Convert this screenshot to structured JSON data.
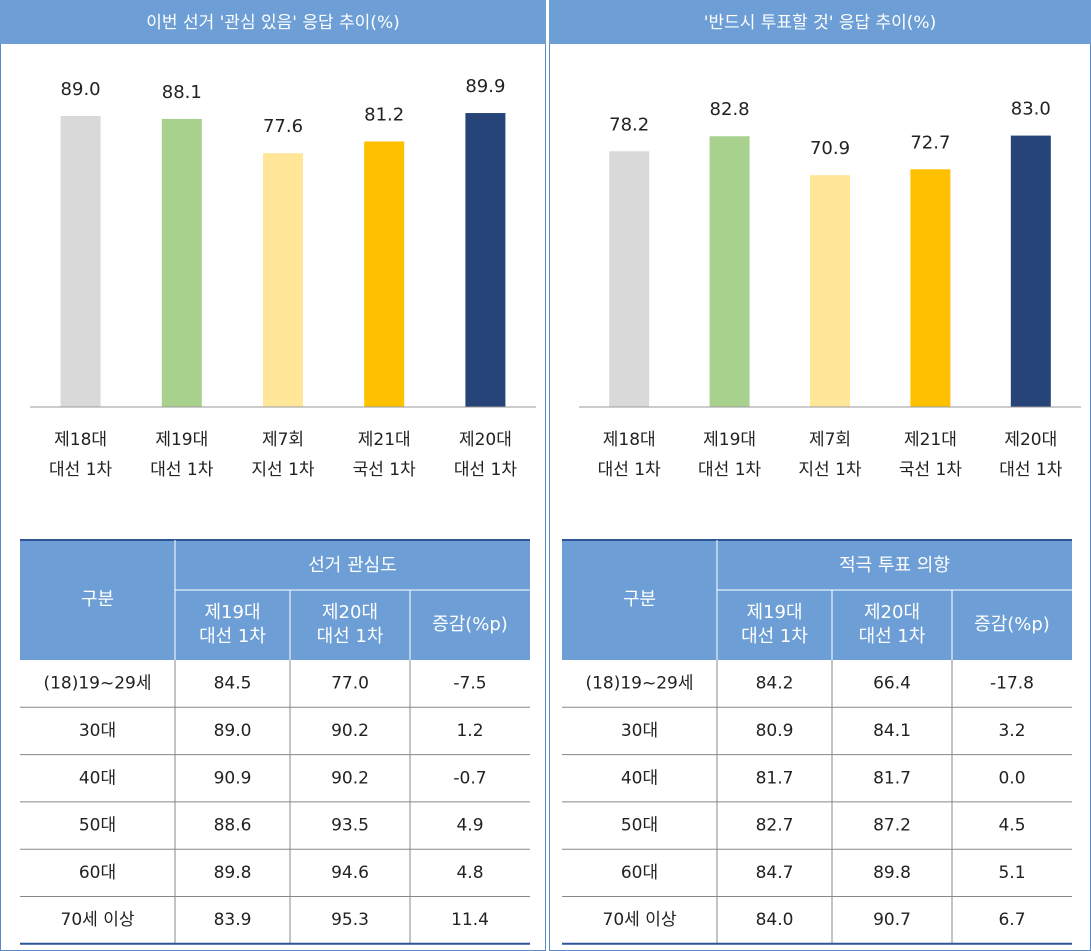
{
  "chart_data": [
    {
      "type": "bar",
      "title": "이번 선거 '관심 있음' 응답 추이(%)",
      "categories": [
        [
          "제18대",
          "대선 1차"
        ],
        [
          "제19대",
          "대선 1차"
        ],
        [
          "제7회",
          "지선 1차"
        ],
        [
          "제21대",
          "국선 1차"
        ],
        [
          "제20대",
          "대선 1차"
        ]
      ],
      "values": [
        89.0,
        88.1,
        77.6,
        81.2,
        89.9
      ],
      "value_labels": [
        "89.0",
        "88.1",
        "77.6",
        "81.2",
        "89.9"
      ],
      "colors": [
        "#d9d9d9",
        "#a9d18e",
        "#ffe699",
        "#ffc000",
        "#264478"
      ],
      "ylim": [
        0,
        100
      ]
    },
    {
      "type": "bar",
      "title": "'반드시 투표할 것' 응답 추이(%)",
      "categories": [
        [
          "제18대",
          "대선 1차"
        ],
        [
          "제19대",
          "대선 1차"
        ],
        [
          "제7회",
          "지선 1차"
        ],
        [
          "제21대",
          "국선 1차"
        ],
        [
          "제20대",
          "대선 1차"
        ]
      ],
      "values": [
        78.2,
        82.8,
        70.9,
        72.7,
        83.0
      ],
      "value_labels": [
        "78.2",
        "82.8",
        "70.9",
        "72.7",
        "83.0"
      ],
      "colors": [
        "#d9d9d9",
        "#a9d18e",
        "#ffe699",
        "#ffc000",
        "#264478"
      ],
      "ylim": [
        0,
        100
      ]
    }
  ],
  "tables": [
    {
      "group": "구분",
      "span": "선거 관심도",
      "columns": [
        [
          "제19대",
          "대선 1차"
        ],
        [
          "제20대",
          "대선 1차"
        ],
        [
          "증감(%p)"
        ]
      ],
      "rows": [
        [
          "(18)19~29세",
          "84.5",
          "77.0",
          "-7.5"
        ],
        [
          "30대",
          "89.0",
          "90.2",
          "1.2"
        ],
        [
          "40대",
          "90.9",
          "90.2",
          "-0.7"
        ],
        [
          "50대",
          "88.6",
          "93.5",
          "4.9"
        ],
        [
          "60대",
          "89.8",
          "94.6",
          "4.8"
        ],
        [
          "70세 이상",
          "83.9",
          "95.3",
          "11.4"
        ]
      ]
    },
    {
      "group": "구분",
      "span": "적극 투표 의향",
      "columns": [
        [
          "제19대",
          "대선 1차"
        ],
        [
          "제20대",
          "대선 1차"
        ],
        [
          "증감(%p)"
        ]
      ],
      "rows": [
        [
          "(18)19~29세",
          "84.2",
          "66.4",
          "-17.8"
        ],
        [
          "30대",
          "80.9",
          "84.1",
          "3.2"
        ],
        [
          "40대",
          "81.7",
          "81.7",
          "0.0"
        ],
        [
          "50대",
          "82.7",
          "87.2",
          "4.5"
        ],
        [
          "60대",
          "84.7",
          "89.8",
          "5.1"
        ],
        [
          "70세 이상",
          "84.0",
          "90.7",
          "6.7"
        ]
      ]
    }
  ]
}
